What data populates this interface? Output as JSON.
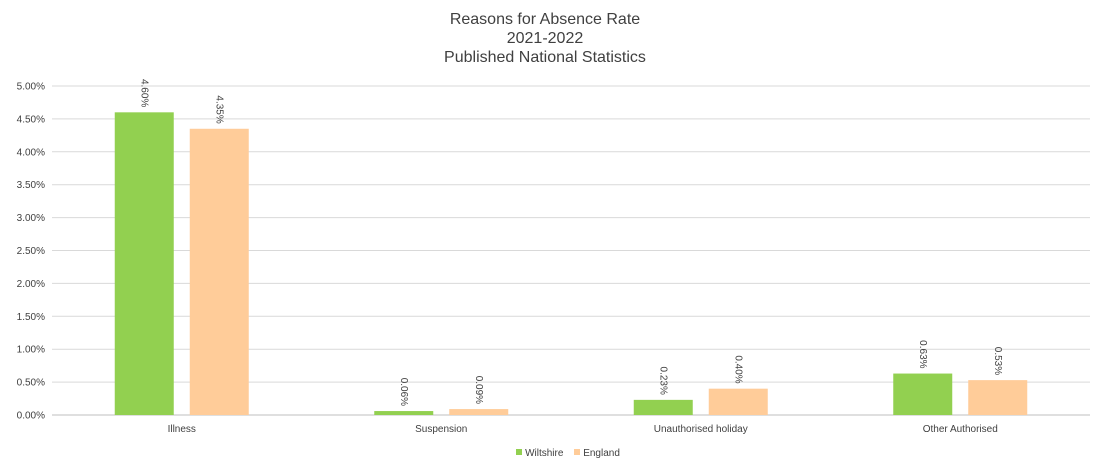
{
  "chart_data": {
    "type": "bar",
    "title": [
      "Reasons for Absence Rate",
      "2021-2022",
      "Published National Statistics"
    ],
    "categories": [
      "Illness",
      "Suspension",
      "Unauthorised holiday",
      "Other Authorised"
    ],
    "series": [
      {
        "name": "Wiltshire",
        "color": "#92d050",
        "values": [
          4.6,
          0.06,
          0.23,
          0.63
        ],
        "labels": [
          "4.60%",
          "0.06%",
          "0.23%",
          "0.63%"
        ]
      },
      {
        "name": "England",
        "color": "#ffcc99",
        "values": [
          4.35,
          0.09,
          0.4,
          0.53
        ],
        "labels": [
          "4.35%",
          "0.09%",
          "0.40%",
          "0.53%"
        ]
      }
    ],
    "ylim": [
      0,
      5
    ],
    "yticks": [
      0,
      0.5,
      1,
      1.5,
      2,
      2.5,
      3,
      3.5,
      4,
      4.5,
      5
    ],
    "ytick_labels": [
      "0.00%",
      "0.50%",
      "1.00%",
      "1.50%",
      "2.00%",
      "2.50%",
      "3.00%",
      "3.50%",
      "4.00%",
      "4.50%",
      "5.00%"
    ],
    "xlabel": "",
    "ylabel": "",
    "grid": true,
    "legend_position": "bottom",
    "gridline_color": "#d9d9d9"
  }
}
